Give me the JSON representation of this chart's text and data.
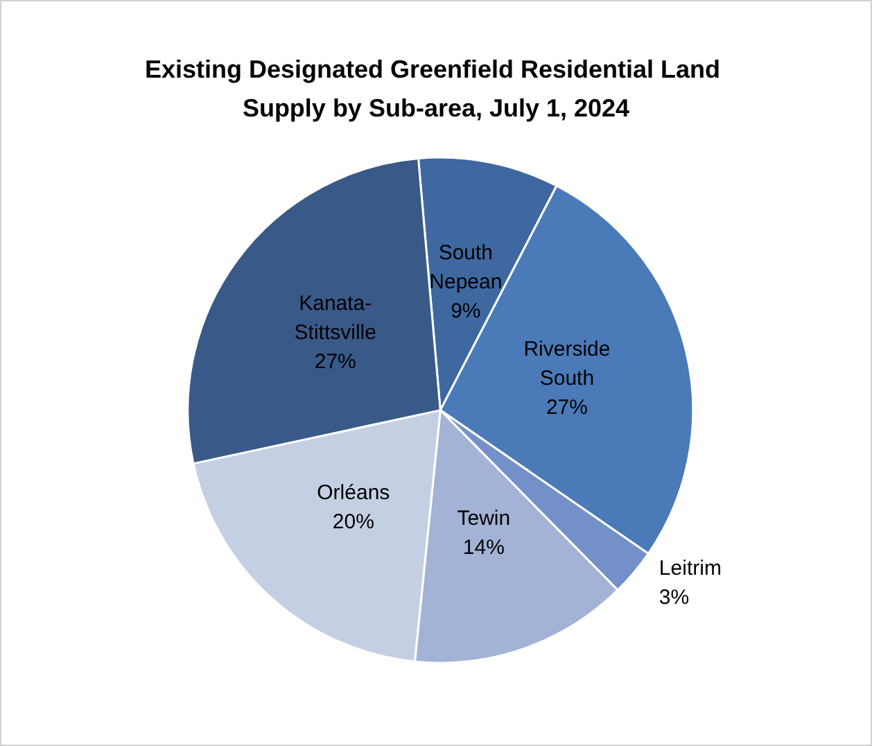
{
  "chart_data": {
    "type": "pie",
    "title": "Existing Designated Greenfield Residential Land Supply by Sub-area, July 1, 2024",
    "categories": [
      "South Nepean",
      "Riverside South",
      "Leitrim",
      "Tewin",
      "Orléans",
      "Kanata-Stittsville"
    ],
    "values": [
      9,
      27,
      3,
      14,
      20,
      27
    ],
    "value_labels": [
      "9%",
      "27%",
      "3%",
      "14%",
      "20%",
      "27%"
    ],
    "colors": [
      "#3f68a0",
      "#4a7ab8",
      "#7391c8",
      "#a3b3d5",
      "#c5cfe4",
      "#395a88"
    ],
    "legend": false
  }
}
